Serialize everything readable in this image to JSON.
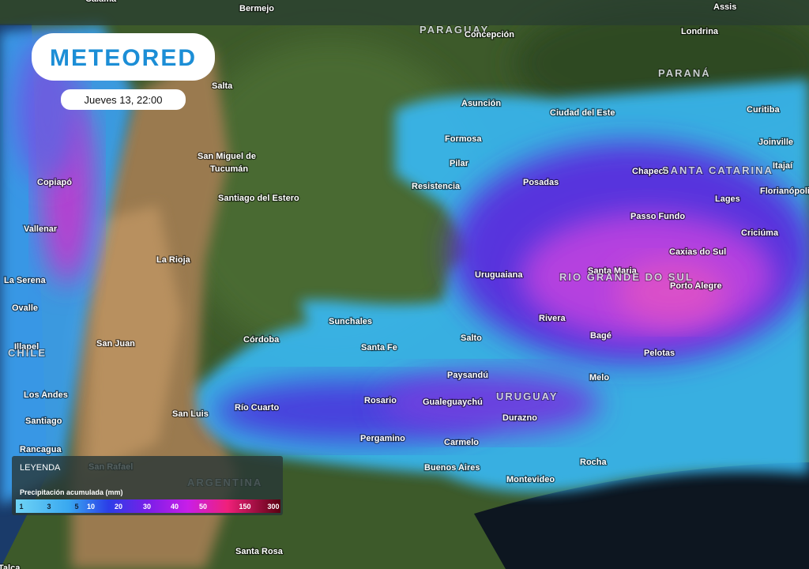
{
  "header": {
    "logo": "METEORED",
    "datetime": "Jueves 13, 22:00"
  },
  "legend": {
    "title": "LEYENDA",
    "subtitle": "Precipitación acumulada (mm)",
    "ticks": [
      "1",
      "3",
      "5",
      "10",
      "20",
      "30",
      "40",
      "50",
      "150",
      "300"
    ]
  },
  "places": [
    "Calama",
    "Bermejo",
    "Assis",
    "PARAGUAY",
    "Concepción",
    "Londrina",
    "PARANÁ",
    "Salta",
    "Asunción",
    "Ciudad del Este",
    "Curitiba",
    "Formosa",
    "Joinville",
    "San Miguel de",
    "Tucumán",
    "Chapecó",
    "SANTA CATARINA",
    "Itajaí",
    "Pilar",
    "Copiapó",
    "Florianópolis",
    "Resistencia",
    "Posadas",
    "Santiago del Estero",
    "Lages",
    "Passo Fundo",
    "Vallenar",
    "Criciúma",
    "La Rioja",
    "Caxias do Sul",
    "Santa Maria",
    "La Serena",
    "Uruguaiana",
    "RIO GRANDE DO SUL",
    "Porto Alegre",
    "Ovalle",
    "Sunchales",
    "Rivera",
    "Illapel",
    "CHILE",
    "San Juan",
    "Córdoba",
    "Santa Fe",
    "Salto",
    "Bagé",
    "Pelotas",
    "Paysandú",
    "Melo",
    "Los Andes",
    "URUGUAY",
    "San Luis",
    "Río Cuarto",
    "Rosario",
    "Gualeguaychú",
    "Durazno",
    "Santiago",
    "Pergamino",
    "Carmelo",
    "Rancagua",
    "Rocha",
    "Buenos Aires",
    "Montevideo",
    "San Rafael",
    "ARGENTINA",
    "Talca",
    "Santa Rosa"
  ]
}
